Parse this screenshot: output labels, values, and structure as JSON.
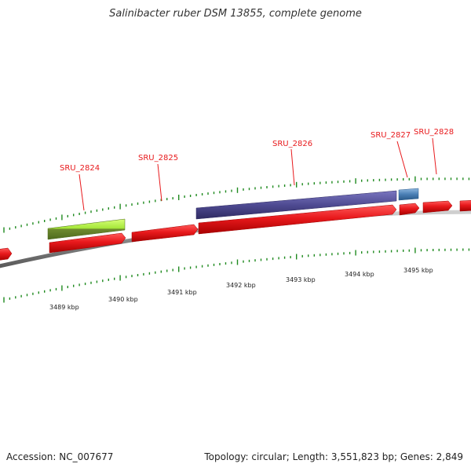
{
  "title": "Salinibacter ruber DSM 13855, complete genome",
  "footer": {
    "accession": "Accession: NC_007677",
    "info": "Topology: circular; Length: 3,551,823 bp; Genes: 2,849"
  },
  "colors": {
    "cds": "#e8191c",
    "cds_dark": "#b00000",
    "gene_feature_green": "#a6e83a",
    "gene_feature_purple": "#4f4b92",
    "gene_feature_blue": "#4a7fb5",
    "backbone": "#8a8a8a",
    "tick": "#1f8a1f",
    "label": "#e8191c"
  },
  "map": {
    "gene_labels": [
      {
        "id": "SRU_2824",
        "label": "SRU_2824"
      },
      {
        "id": "SRU_2825",
        "label": "SRU_2825"
      },
      {
        "id": "SRU_2826",
        "label": "SRU_2826"
      },
      {
        "id": "SRU_2827",
        "label": "SRU_2827"
      },
      {
        "id": "SRU_2828",
        "label": "SRU_2828"
      }
    ],
    "kbp_labels": [
      "3489 kbp",
      "3490 kbp",
      "3491 kbp",
      "3492 kbp",
      "3493 kbp",
      "3494 kbp",
      "3495 kbp"
    ]
  }
}
